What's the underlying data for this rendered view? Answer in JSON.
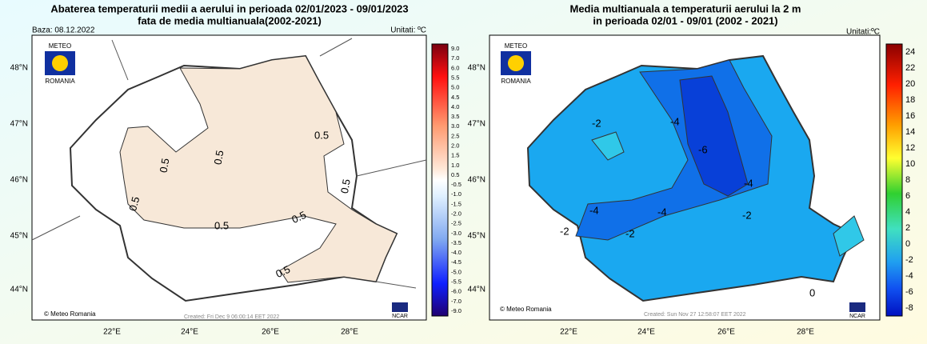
{
  "left": {
    "title": [
      "Abaterea temperaturii medii a aerului in perioada 02/01/2023 - 09/01/2023",
      "fata de media multianuala(2002-2021)"
    ],
    "base": "Baza: 08.12.2022",
    "units": "Unitati: ºC",
    "lat_labels": [
      "48°N",
      "47°N",
      "46°N",
      "45°N",
      "44°N"
    ],
    "lon_labels": [
      "22°E",
      "24°E",
      "26°E",
      "28°E"
    ],
    "colorbar": [
      "9.0",
      "7.0",
      "6.0",
      "5.5",
      "5.0",
      "4.5",
      "4.0",
      "3.5",
      "3.0",
      "2.5",
      "2.0",
      "1.5",
      "1.0",
      "0.5",
      "-0.5",
      "-1.0",
      "-1.5",
      "-2.0",
      "-2.5",
      "-3.0",
      "-3.5",
      "-4.0",
      "-4.5",
      "-5.0",
      "-5.5",
      "-6.0",
      "-7.0",
      "-9.0"
    ],
    "contour_labels": [
      "0.5",
      "0.5",
      "0.5",
      "0.5",
      "0.5",
      "0.5",
      "0.5",
      "0.5"
    ],
    "logo": [
      "METEO",
      "ROMANIA"
    ],
    "copyright": "© Meteo Romania",
    "created": "Created: Fri Dec  9 06:00:14 EET 2022",
    "ncar": "NCAR"
  },
  "right": {
    "title": [
      "Media multianuala a temperaturii aerului la 2 m",
      "in perioada 02/01 - 09/01 (2002 - 2021)"
    ],
    "units": "Unitati:ºC",
    "lat_labels": [
      "48°N",
      "47°N",
      "46°N",
      "45°N",
      "44°N"
    ],
    "lon_labels": [
      "22°E",
      "24°E",
      "26°E",
      "28°E"
    ],
    "colorbar": [
      "24",
      "22",
      "20",
      "18",
      "16",
      "14",
      "12",
      "10",
      "8",
      "6",
      "4",
      "2",
      "0",
      "-2",
      "-4",
      "-6",
      "-8"
    ],
    "contour_labels": [
      "-2",
      "-4",
      "-6",
      "-4",
      "-4",
      "-4",
      "-2",
      "-2",
      "-2",
      "0"
    ],
    "logo": [
      "METEO",
      "ROMANIA"
    ],
    "copyright": "© Meteo Romania",
    "created": "Created: Sun Nov 27 12:58:07 EET 2022",
    "ncar": "NCAR"
  }
}
